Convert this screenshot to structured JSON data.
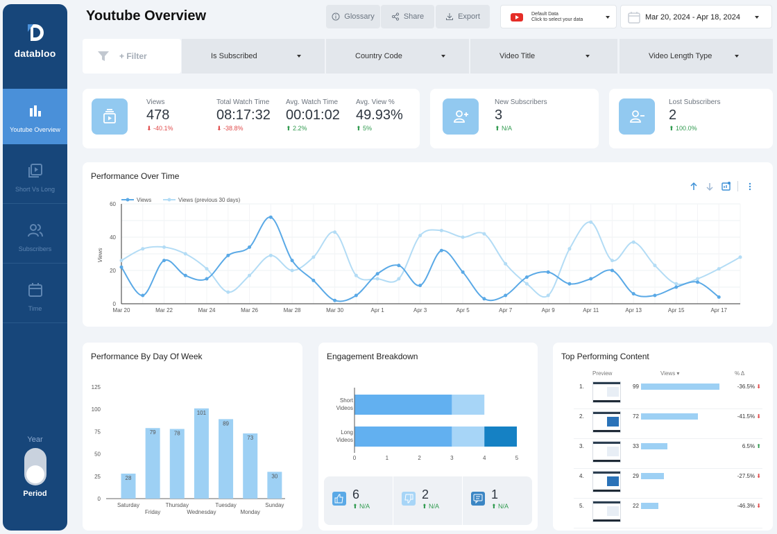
{
  "app": {
    "title": "Youtube Overview"
  },
  "sidebar": {
    "logo_text": "databloo",
    "items": [
      {
        "label": "Youtube Overview",
        "icon": "bar-chart-icon"
      },
      {
        "label": "Short Vs Long",
        "icon": "video-library-icon"
      },
      {
        "label": "Subscribers",
        "icon": "users-icon"
      },
      {
        "label": "Time",
        "icon": "calendar-icon"
      }
    ],
    "year_label": "Year",
    "period_label": "Period"
  },
  "toolbar": {
    "glossary": "Glossary",
    "share": "Share",
    "export": "Export"
  },
  "datasource": {
    "line1": "Default Data",
    "line2": "Click to select your data"
  },
  "daterange": "Mar 20, 2024 - Apr 18, 2024",
  "filters": {
    "add": "+ Filter",
    "dropdowns": [
      "Is Subscribed",
      "Country Code",
      "Video Title",
      "Video Length Type"
    ]
  },
  "kpis": {
    "views": {
      "label": "Views",
      "value": "478",
      "delta": "-40.1%"
    },
    "watch_time": {
      "label": "Total Watch Time",
      "value": "08:17:32",
      "delta": "-38.8%"
    },
    "avg_watch": {
      "label": "Avg. Watch Time",
      "value": "00:01:02",
      "delta": "2.2%"
    },
    "avg_view_pct": {
      "label": "Avg. View %",
      "value": "49.93%",
      "delta": "5%"
    },
    "new_subs": {
      "label": "New Subscribers",
      "value": "3",
      "delta": "N/A"
    },
    "lost_subs": {
      "label": "Lost Subscribers",
      "value": "2",
      "delta": "100.0%"
    }
  },
  "performance": {
    "title": "Performance Over Time",
    "legend": [
      "Views",
      "Views (previous 30 days)"
    ]
  },
  "chart_data": [
    {
      "type": "line",
      "title": "Performance Over Time",
      "ylabel": "Views",
      "ylim": [
        0,
        60
      ],
      "yticks": [
        0,
        20,
        40,
        60
      ],
      "xticks": [
        "Mar 20",
        "Mar 22",
        "Mar 24",
        "Mar 26",
        "Mar 28",
        "Mar 30",
        "Apr 1",
        "Apr 3",
        "Apr 5",
        "Apr 7",
        "Apr 9",
        "Apr 11",
        "Apr 13",
        "Apr 15",
        "Apr 17"
      ],
      "legend_position": "top-left",
      "grid": true,
      "series": [
        {
          "name": "Views",
          "color": "#5aa9e6",
          "values": [
            22,
            5,
            26,
            17,
            15,
            29,
            34,
            52,
            26,
            14,
            2,
            5,
            18,
            23,
            11,
            32,
            19,
            3,
            5,
            16,
            19,
            12,
            15,
            20,
            6,
            5,
            10,
            13,
            4
          ]
        },
        {
          "name": "Views (previous 30 days)",
          "color": "#b3dcf5",
          "values": [
            26,
            33,
            34,
            30,
            21,
            7,
            17,
            29,
            20,
            28,
            43,
            17,
            15,
            15,
            41,
            44,
            40,
            42,
            24,
            12,
            5,
            33,
            49,
            26,
            37,
            23,
            12,
            15,
            21,
            28
          ]
        }
      ]
    },
    {
      "type": "bar",
      "title": "Performance By Day Of Week",
      "categories": [
        "Saturday",
        "Friday",
        "Thursday",
        "Wednesday",
        "Tuesday",
        "Monday",
        "Sunday"
      ],
      "values": [
        28,
        79,
        78,
        101,
        89,
        73,
        30
      ],
      "ylim": [
        0,
        125
      ],
      "yticks": [
        0,
        25,
        50,
        75,
        100,
        125
      ],
      "color": "#9dd0f4"
    },
    {
      "type": "bar",
      "orientation": "horizontal",
      "stacked": true,
      "title": "Engagement Breakdown",
      "categories": [
        "Short Videos",
        "Long Videos"
      ],
      "series": [
        {
          "color": "#62b0f0",
          "values": [
            3,
            3
          ]
        },
        {
          "color": "#a7d5f7",
          "values": [
            1,
            1
          ]
        },
        {
          "color": "#1581c4",
          "values": [
            0,
            1
          ]
        }
      ],
      "xlim": [
        0,
        5
      ],
      "xticks": [
        0,
        1,
        2,
        3,
        4,
        5
      ]
    }
  ],
  "dow": {
    "title": "Performance By Day Of Week"
  },
  "engagement": {
    "title": "Engagement Breakdown",
    "stats": [
      {
        "icon": "thumbs-up-icon",
        "value": "6",
        "delta": "N/A"
      },
      {
        "icon": "thumbs-down-icon",
        "value": "2",
        "delta": "N/A"
      },
      {
        "icon": "comment-icon",
        "value": "1",
        "delta": "N/A"
      }
    ]
  },
  "top": {
    "title": "Top Performing Content",
    "headers": {
      "preview": "Preview",
      "views": "Views",
      "pct": "% Δ"
    },
    "rows": [
      {
        "rank": "1.",
        "views": 99,
        "pct": "-36.5%",
        "dir": "down"
      },
      {
        "rank": "2.",
        "views": 72,
        "pct": "-41.5%",
        "dir": "down"
      },
      {
        "rank": "3.",
        "views": 33,
        "pct": "6.5%",
        "dir": "up"
      },
      {
        "rank": "4.",
        "views": 29,
        "pct": "-27.5%",
        "dir": "down"
      },
      {
        "rank": "5.",
        "views": 22,
        "pct": "-46.3%",
        "dir": "down"
      }
    ]
  }
}
